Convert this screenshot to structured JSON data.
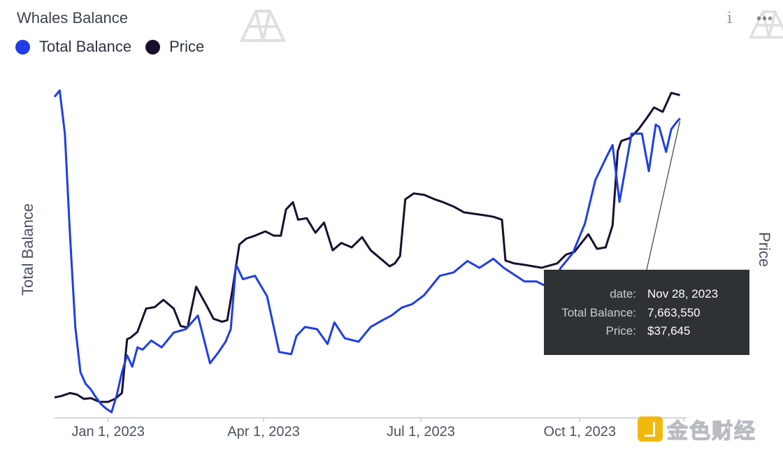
{
  "header": {
    "title": "Whales Balance",
    "info_icon": "info-icon",
    "menu_icon": "kebab-menu-icon"
  },
  "legend": [
    {
      "label": "Total Balance",
      "color": "#1f3ee6"
    },
    {
      "label": "Price",
      "color": "#1a0f2e"
    }
  ],
  "tooltip": {
    "rows": [
      {
        "key": "date:",
        "value": "Nov 28, 2023"
      },
      {
        "key": "Total Balance:",
        "value": "7,663,550"
      },
      {
        "key": "Price:",
        "value": "$37,645"
      }
    ]
  },
  "watermark": {
    "text": "金色财经"
  },
  "chart_data": {
    "type": "line",
    "title": "Whales Balance",
    "ylabel_left": "Total Balance",
    "ylabel_right": "Price",
    "x_ticks": [
      "Jan 1, 2023",
      "Apr 1, 2023",
      "Jul 1, 2023",
      "Oct 1, 2023"
    ],
    "x_tick_dates": [
      "2023-01-01",
      "2023-04-01",
      "2023-07-01",
      "2023-10-01"
    ],
    "x_range": [
      "2022-12-01",
      "2023-12-01"
    ],
    "y_left_range": [
      7400000,
      7700000
    ],
    "y_right_range": [
      15500,
      38900
    ],
    "grid": false,
    "legend_position": "top-left",
    "hover": {
      "date": "2023-11-28",
      "Total Balance": 7663550,
      "Price": 37645
    },
    "series": [
      {
        "name": "Total Balance",
        "axis": "left",
        "color": "#1f3ee6",
        "x": [
          "2022-12-01",
          "2022-12-04",
          "2022-12-07",
          "2022-12-10",
          "2022-12-13",
          "2022-12-16",
          "2022-12-19",
          "2022-12-22",
          "2022-12-25",
          "2022-12-28",
          "2022-12-31",
          "2023-01-03",
          "2023-01-06",
          "2023-01-09",
          "2023-01-12",
          "2023-01-15",
          "2023-01-18",
          "2023-01-21",
          "2023-01-26",
          "2023-02-01",
          "2023-02-08",
          "2023-02-15",
          "2023-02-22",
          "2023-03-01",
          "2023-03-06",
          "2023-03-10",
          "2023-03-13",
          "2023-03-16",
          "2023-03-20",
          "2023-03-27",
          "2023-04-03",
          "2023-04-10",
          "2023-04-17",
          "2023-04-20",
          "2023-04-25",
          "2023-05-02",
          "2023-05-08",
          "2023-05-12",
          "2023-05-18",
          "2023-05-26",
          "2023-06-02",
          "2023-06-09",
          "2023-06-14",
          "2023-06-20",
          "2023-06-26",
          "2023-07-03",
          "2023-07-12",
          "2023-07-20",
          "2023-07-28",
          "2023-08-04",
          "2023-08-12",
          "2023-08-18",
          "2023-08-22",
          "2023-08-30",
          "2023-09-06",
          "2023-09-14",
          "2023-09-20",
          "2023-09-27",
          "2023-10-04",
          "2023-10-10",
          "2023-10-16",
          "2023-10-20",
          "2023-10-24",
          "2023-10-31",
          "2023-11-06",
          "2023-11-10",
          "2023-11-14",
          "2023-11-16",
          "2023-11-20",
          "2023-11-23",
          "2023-11-26",
          "2023-11-28"
        ],
        "y": [
          7682500,
          7688000,
          7650000,
          7560000,
          7480000,
          7440000,
          7430000,
          7425000,
          7418000,
          7412000,
          7408000,
          7405000,
          7420000,
          7440000,
          7455000,
          7445000,
          7462000,
          7460000,
          7468000,
          7462000,
          7475000,
          7478000,
          7490000,
          7448000,
          7458000,
          7467000,
          7478000,
          7535000,
          7522000,
          7525000,
          7507000,
          7458000,
          7456000,
          7472000,
          7480000,
          7478000,
          7465000,
          7484000,
          7470000,
          7467000,
          7480000,
          7486000,
          7490000,
          7497000,
          7500000,
          7508000,
          7525000,
          7528000,
          7538000,
          7532000,
          7540000,
          7532000,
          7528000,
          7520000,
          7520000,
          7514000,
          7532000,
          7545000,
          7571000,
          7609000,
          7628000,
          7640000,
          7590000,
          7650000,
          7650000,
          7617000,
          7658000,
          7656000,
          7634000,
          7654000,
          7660000,
          7663550
        ]
      },
      {
        "name": "Price",
        "axis": "right",
        "color": "#1a0f2e",
        "x": [
          "2022-12-01",
          "2022-12-05",
          "2022-12-10",
          "2022-12-14",
          "2022-12-18",
          "2022-12-22",
          "2022-12-27",
          "2023-01-01",
          "2023-01-05",
          "2023-01-09",
          "2023-01-12",
          "2023-01-14",
          "2023-01-18",
          "2023-01-23",
          "2023-01-28",
          "2023-02-02",
          "2023-02-08",
          "2023-02-12",
          "2023-02-16",
          "2023-02-21",
          "2023-02-27",
          "2023-03-03",
          "2023-03-08",
          "2023-03-11",
          "2023-03-14",
          "2023-03-18",
          "2023-03-22",
          "2023-03-27",
          "2023-04-02",
          "2023-04-07",
          "2023-04-11",
          "2023-04-14",
          "2023-04-18",
          "2023-04-21",
          "2023-04-26",
          "2023-05-01",
          "2023-05-06",
          "2023-05-11",
          "2023-05-16",
          "2023-05-22",
          "2023-05-28",
          "2023-06-02",
          "2023-06-08",
          "2023-06-13",
          "2023-06-16",
          "2023-06-19",
          "2023-06-22",
          "2023-06-27",
          "2023-07-03",
          "2023-07-09",
          "2023-07-14",
          "2023-07-20",
          "2023-07-26",
          "2023-08-01",
          "2023-08-07",
          "2023-08-12",
          "2023-08-17",
          "2023-08-19",
          "2023-08-24",
          "2023-08-30",
          "2023-09-04",
          "2023-09-09",
          "2023-09-12",
          "2023-09-18",
          "2023-09-23",
          "2023-09-28",
          "2023-10-02",
          "2023-10-06",
          "2023-10-11",
          "2023-10-16",
          "2023-10-20",
          "2023-10-23",
          "2023-10-25",
          "2023-10-30",
          "2023-11-04",
          "2023-11-09",
          "2023-11-13",
          "2023-11-18",
          "2023-11-23",
          "2023-11-28"
        ],
        "y": [
          16900,
          17000,
          17200,
          17100,
          16800,
          16850,
          16600,
          16600,
          16800,
          17200,
          20900,
          21000,
          21400,
          23000,
          23100,
          23600,
          23000,
          21800,
          21700,
          24500,
          23200,
          22300,
          22100,
          22200,
          24300,
          27400,
          27800,
          28000,
          28300,
          28000,
          28000,
          29800,
          30300,
          29100,
          29200,
          28200,
          28900,
          27000,
          27500,
          27200,
          27900,
          27000,
          26400,
          25900,
          26100,
          26600,
          30500,
          30900,
          30800,
          30500,
          30300,
          30000,
          29600,
          29500,
          29400,
          29300,
          29100,
          26300,
          26100,
          26000,
          25900,
          25800,
          25900,
          26100,
          26700,
          26900,
          27500,
          28100,
          27100,
          27200,
          28700,
          33800,
          34500,
          34700,
          35300,
          36100,
          36800,
          36500,
          37800,
          37645
        ]
      }
    ]
  }
}
